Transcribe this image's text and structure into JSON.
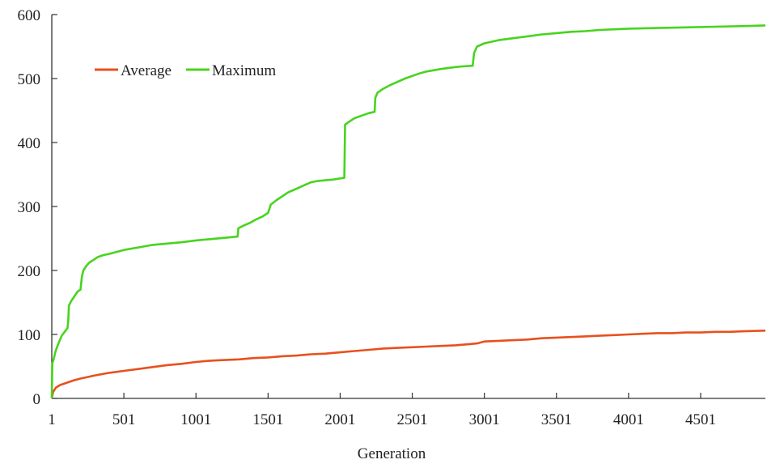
{
  "chart_data": {
    "type": "line",
    "xlabel": "Generation",
    "ylabel": "",
    "title": "",
    "xlim": [
      1,
      4950
    ],
    "ylim": [
      0,
      600
    ],
    "x_ticks": [
      1,
      501,
      1001,
      1501,
      2001,
      2501,
      3001,
      3501,
      4001,
      4501
    ],
    "y_ticks": [
      0,
      100,
      200,
      300,
      400,
      500,
      600
    ],
    "grid": false,
    "legend": "top-left",
    "series": [
      {
        "name": "Average",
        "color": "#e8501e",
        "points": [
          [
            1,
            0
          ],
          [
            10,
            10
          ],
          [
            30,
            17
          ],
          [
            60,
            21
          ],
          [
            100,
            24
          ],
          [
            150,
            28
          ],
          [
            200,
            31
          ],
          [
            300,
            36
          ],
          [
            400,
            40
          ],
          [
            501,
            43
          ],
          [
            600,
            46
          ],
          [
            700,
            49
          ],
          [
            800,
            52
          ],
          [
            900,
            54
          ],
          [
            1001,
            57
          ],
          [
            1100,
            59
          ],
          [
            1200,
            60
          ],
          [
            1300,
            61
          ],
          [
            1400,
            63
          ],
          [
            1501,
            64
          ],
          [
            1600,
            66
          ],
          [
            1700,
            67
          ],
          [
            1800,
            69
          ],
          [
            1900,
            70
          ],
          [
            2001,
            72
          ],
          [
            2100,
            74
          ],
          [
            2200,
            76
          ],
          [
            2300,
            78
          ],
          [
            2400,
            79
          ],
          [
            2501,
            80
          ],
          [
            2600,
            81
          ],
          [
            2700,
            82
          ],
          [
            2800,
            83
          ],
          [
            2900,
            85
          ],
          [
            2950,
            86
          ],
          [
            3001,
            89
          ],
          [
            3100,
            90
          ],
          [
            3200,
            91
          ],
          [
            3300,
            92
          ],
          [
            3400,
            94
          ],
          [
            3501,
            95
          ],
          [
            3600,
            96
          ],
          [
            3700,
            97
          ],
          [
            3800,
            98
          ],
          [
            3900,
            99
          ],
          [
            4001,
            100
          ],
          [
            4100,
            101
          ],
          [
            4200,
            102
          ],
          [
            4300,
            102
          ],
          [
            4400,
            103
          ],
          [
            4501,
            103
          ],
          [
            4600,
            104
          ],
          [
            4700,
            104
          ],
          [
            4800,
            105
          ],
          [
            4950,
            106
          ]
        ]
      },
      {
        "name": "Maximum",
        "color": "#47d41f",
        "points": [
          [
            1,
            0
          ],
          [
            5,
            55
          ],
          [
            15,
            62
          ],
          [
            25,
            72
          ],
          [
            40,
            82
          ],
          [
            55,
            90
          ],
          [
            70,
            98
          ],
          [
            90,
            104
          ],
          [
            110,
            110
          ],
          [
            115,
            120
          ],
          [
            120,
            145
          ],
          [
            135,
            152
          ],
          [
            150,
            157
          ],
          [
            165,
            162
          ],
          [
            180,
            167
          ],
          [
            200,
            170
          ],
          [
            210,
            190
          ],
          [
            220,
            200
          ],
          [
            240,
            207
          ],
          [
            260,
            212
          ],
          [
            300,
            218
          ],
          [
            320,
            221
          ],
          [
            360,
            224
          ],
          [
            400,
            226
          ],
          [
            450,
            229
          ],
          [
            501,
            232
          ],
          [
            550,
            234
          ],
          [
            600,
            236
          ],
          [
            650,
            238
          ],
          [
            700,
            240
          ],
          [
            800,
            242
          ],
          [
            900,
            244
          ],
          [
            1001,
            247
          ],
          [
            1100,
            249
          ],
          [
            1200,
            251
          ],
          [
            1290,
            253
          ],
          [
            1295,
            266
          ],
          [
            1330,
            270
          ],
          [
            1380,
            275
          ],
          [
            1420,
            280
          ],
          [
            1460,
            284
          ],
          [
            1501,
            290
          ],
          [
            1520,
            303
          ],
          [
            1560,
            310
          ],
          [
            1600,
            316
          ],
          [
            1640,
            322
          ],
          [
            1680,
            326
          ],
          [
            1720,
            330
          ],
          [
            1760,
            334
          ],
          [
            1800,
            338
          ],
          [
            1850,
            340
          ],
          [
            1900,
            341
          ],
          [
            1950,
            342
          ],
          [
            2030,
            345
          ],
          [
            2035,
            428
          ],
          [
            2060,
            432
          ],
          [
            2100,
            438
          ],
          [
            2150,
            442
          ],
          [
            2200,
            446
          ],
          [
            2240,
            448
          ],
          [
            2245,
            470
          ],
          [
            2260,
            478
          ],
          [
            2300,
            484
          ],
          [
            2350,
            490
          ],
          [
            2400,
            495
          ],
          [
            2450,
            500
          ],
          [
            2501,
            504
          ],
          [
            2550,
            508
          ],
          [
            2600,
            511
          ],
          [
            2700,
            515
          ],
          [
            2800,
            518
          ],
          [
            2850,
            519
          ],
          [
            2920,
            520
          ],
          [
            2930,
            540
          ],
          [
            2950,
            550
          ],
          [
            3001,
            555
          ],
          [
            3100,
            560
          ],
          [
            3200,
            563
          ],
          [
            3300,
            566
          ],
          [
            3400,
            569
          ],
          [
            3501,
            571
          ],
          [
            3600,
            573
          ],
          [
            3700,
            574
          ],
          [
            3800,
            576
          ],
          [
            3900,
            577
          ],
          [
            4001,
            578
          ],
          [
            4200,
            579
          ],
          [
            4400,
            580
          ],
          [
            4600,
            581
          ],
          [
            4800,
            582
          ],
          [
            4950,
            583
          ]
        ]
      }
    ]
  }
}
